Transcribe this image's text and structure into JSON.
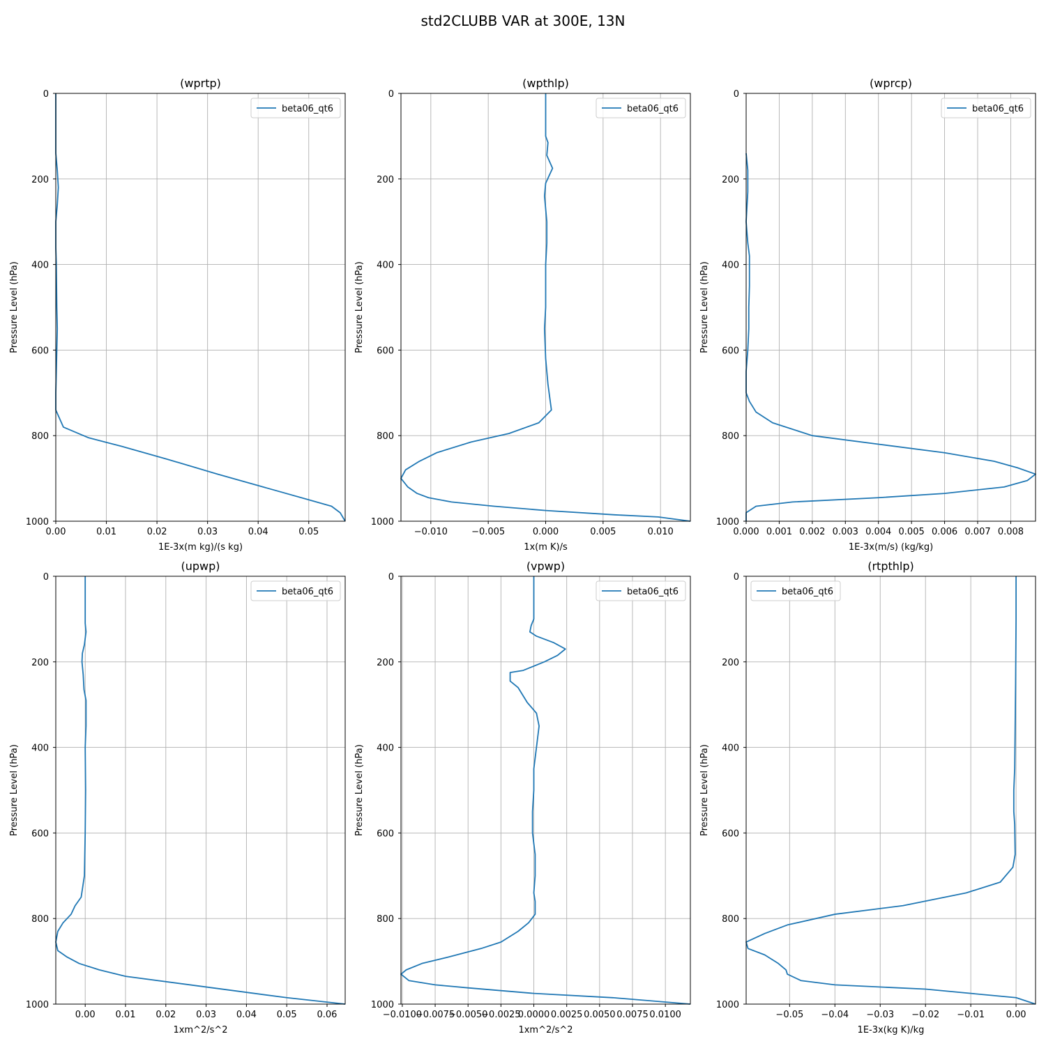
{
  "figure": {
    "title": "std2CLUBB VAR at 300E, 13N"
  },
  "colors": {
    "series": "#1f77b4",
    "grid": "#b0b0b0"
  },
  "chart_data": [
    {
      "type": "line",
      "title": "(wprtp)",
      "xlabel": "1E-3x(m kg)/(s kg)",
      "ylabel": "Pressure Level (hPa)",
      "xlim": [
        0,
        0.0572
      ],
      "ylim": [
        1000,
        0
      ],
      "y_inverted": true,
      "grid": true,
      "legend_position": "upper right",
      "xticks": [
        0,
        0.01,
        0.02,
        0.03,
        0.04,
        0.05
      ],
      "xtick_labels": [
        "0.00",
        "0.01",
        "0.02",
        "0.03",
        "0.04",
        "0.05"
      ],
      "yticks": [
        0,
        200,
        400,
        600,
        800,
        1000
      ],
      "ytick_labels": [
        "0",
        "200",
        "400",
        "600",
        "800",
        "1000"
      ],
      "series": [
        {
          "name": "beta06_qt6",
          "points": [
            [
              0,
              0
            ],
            [
              0,
              140
            ],
            [
              0.0003,
              180
            ],
            [
              0.0005,
              220
            ],
            [
              0.0003,
              260
            ],
            [
              0,
              300
            ],
            [
              0,
              360
            ],
            [
              0.0001,
              400
            ],
            [
              0.0002,
              500
            ],
            [
              0.0003,
              550
            ],
            [
              0.0002,
              600
            ],
            [
              0.0001,
              650
            ],
            [
              0,
              700
            ],
            [
              0,
              740
            ],
            [
              0.0015,
              780
            ],
            [
              0.0065,
              805
            ],
            [
              0.013,
              825
            ],
            [
              0.022,
              855
            ],
            [
              0.032,
              890
            ],
            [
              0.041,
              920
            ],
            [
              0.05,
              950
            ],
            [
              0.0545,
              965
            ],
            [
              0.0562,
              980
            ],
            [
              0.0572,
              1000
            ]
          ]
        }
      ]
    },
    {
      "type": "line",
      "title": "(wpthlp)",
      "xlabel": "1x(m K)/s",
      "ylabel": "Pressure Level (hPa)",
      "xlim": [
        -0.0126,
        0.0126
      ],
      "ylim": [
        1000,
        0
      ],
      "y_inverted": true,
      "grid": true,
      "legend_position": "upper right",
      "xticks": [
        -0.01,
        -0.005,
        0,
        0.005,
        0.01
      ],
      "xtick_labels": [
        "−0.010",
        "−0.005",
        "0.000",
        "0.005",
        "0.010"
      ],
      "yticks": [
        0,
        200,
        400,
        600,
        800,
        1000
      ],
      "ytick_labels": [
        "0",
        "200",
        "400",
        "600",
        "800",
        "1000"
      ],
      "series": [
        {
          "name": "beta06_qt6",
          "points": [
            [
              0,
              0
            ],
            [
              0,
              100
            ],
            [
              0.0002,
              115
            ],
            [
              0.0001,
              145
            ],
            [
              0.0006,
              175
            ],
            [
              0,
              210
            ],
            [
              -0.0001,
              240
            ],
            [
              0.0001,
              300
            ],
            [
              0.0001,
              350
            ],
            [
              0,
              400
            ],
            [
              0,
              500
            ],
            [
              -0.0001,
              550
            ],
            [
              0,
              620
            ],
            [
              0.0002,
              680
            ],
            [
              0.0005,
              740
            ],
            [
              -0.0006,
              770
            ],
            [
              -0.0032,
              795
            ],
            [
              -0.0065,
              815
            ],
            [
              -0.0095,
              840
            ],
            [
              -0.011,
              860
            ],
            [
              -0.0122,
              880
            ],
            [
              -0.0126,
              900
            ],
            [
              -0.012,
              920
            ],
            [
              -0.0112,
              935
            ],
            [
              -0.0102,
              945
            ],
            [
              -0.0082,
              955
            ],
            [
              -0.0045,
              965
            ],
            [
              0,
              975
            ],
            [
              0.006,
              985
            ],
            [
              0.0098,
              990
            ],
            [
              0.0126,
              1000
            ]
          ]
        }
      ]
    },
    {
      "type": "line",
      "title": "(wprcp)",
      "xlabel": "1E-3x(m/s) (kg/kg)",
      "ylabel": "Pressure Level (hPa)",
      "xlim": [
        0,
        0.00875
      ],
      "ylim": [
        1000,
        0
      ],
      "y_inverted": true,
      "grid": true,
      "legend_position": "upper right",
      "xticks": [
        0,
        0.001,
        0.002,
        0.003,
        0.004,
        0.005,
        0.006,
        0.007,
        0.008
      ],
      "xtick_labels": [
        "0.000",
        "0.001",
        "0.002",
        "0.003",
        "0.004",
        "0.005",
        "0.006",
        "0.007",
        "0.008"
      ],
      "yticks": [
        0,
        200,
        400,
        600,
        800,
        1000
      ],
      "ytick_labels": [
        "0",
        "200",
        "400",
        "600",
        "800",
        "1000"
      ],
      "series": [
        {
          "name": "beta06_qt6",
          "points": [
            [
              0,
              140
            ],
            [
              5e-05,
              180
            ],
            [
              5e-05,
              230
            ],
            [
              0,
              300
            ],
            [
              5e-05,
              350
            ],
            [
              0.0001,
              380
            ],
            [
              0.0001,
              450
            ],
            [
              8e-05,
              500
            ],
            [
              8e-05,
              550
            ],
            [
              5e-05,
              600
            ],
            [
              0,
              650
            ],
            [
              0,
              700
            ],
            [
              0.0001,
              720
            ],
            [
              0.0003,
              745
            ],
            [
              0.0008,
              770
            ],
            [
              0.002,
              800
            ],
            [
              0.004,
              820
            ],
            [
              0.006,
              840
            ],
            [
              0.0075,
              860
            ],
            [
              0.0082,
              875
            ],
            [
              0.00875,
              890
            ],
            [
              0.0085,
              905
            ],
            [
              0.0078,
              920
            ],
            [
              0.006,
              935
            ],
            [
              0.004,
              945
            ],
            [
              0.0014,
              955
            ],
            [
              0.0003,
              965
            ],
            [
              0,
              980
            ],
            [
              0,
              1000
            ]
          ]
        }
      ]
    },
    {
      "type": "line",
      "title": "(upwp)",
      "xlabel": "1xm^2/s^2",
      "ylabel": "Pressure Level (hPa)",
      "xlim": [
        -0.0073,
        0.0645
      ],
      "ylim": [
        1000,
        0
      ],
      "y_inverted": true,
      "grid": true,
      "legend_position": "upper right",
      "xticks": [
        0,
        0.01,
        0.02,
        0.03,
        0.04,
        0.05,
        0.06
      ],
      "xtick_labels": [
        "0.00",
        "0.01",
        "0.02",
        "0.03",
        "0.04",
        "0.05",
        "0.06"
      ],
      "yticks": [
        0,
        200,
        400,
        600,
        800,
        1000
      ],
      "ytick_labels": [
        "0",
        "200",
        "400",
        "600",
        "800",
        "1000"
      ],
      "series": [
        {
          "name": "beta06_qt6",
          "points": [
            [
              0,
              0
            ],
            [
              0,
              110
            ],
            [
              0.0002,
              130
            ],
            [
              -0.0002,
              160
            ],
            [
              -0.0007,
              180
            ],
            [
              -0.0008,
              200
            ],
            [
              -0.0005,
              230
            ],
            [
              -0.0003,
              265
            ],
            [
              0.0002,
              290
            ],
            [
              0.0002,
              350
            ],
            [
              0,
              400
            ],
            [
              0.0001,
              500
            ],
            [
              0,
              600
            ],
            [
              -0.0002,
              700
            ],
            [
              -0.001,
              750
            ],
            [
              -0.0025,
              770
            ],
            [
              -0.0035,
              790
            ],
            [
              -0.0055,
              810
            ],
            [
              -0.0068,
              830
            ],
            [
              -0.0073,
              855
            ],
            [
              -0.0068,
              875
            ],
            [
              -0.0045,
              890
            ],
            [
              -0.0015,
              905
            ],
            [
              0.0035,
              920
            ],
            [
              0.01,
              935
            ],
            [
              0.03,
              960
            ],
            [
              0.05,
              985
            ],
            [
              0.0645,
              1000
            ]
          ]
        }
      ]
    },
    {
      "type": "line",
      "title": "(vpwp)",
      "xlabel": "1xm^2/s^2",
      "ylabel": "Pressure Level (hPa)",
      "xlim": [
        -0.0101,
        0.0119
      ],
      "ylim": [
        1000,
        0
      ],
      "y_inverted": true,
      "grid": true,
      "legend_position": "upper right",
      "xticks": [
        -0.01,
        -0.0075,
        -0.005,
        -0.0025,
        0,
        0.0025,
        0.005,
        0.0075,
        0.01
      ],
      "xtick_labels": [
        "−0.0100",
        "−0.0075",
        "−0.0050",
        "−0.0025",
        "0.0000",
        "0.0025",
        "0.0050",
        "0.0075",
        "0.0100"
      ],
      "yticks": [
        0,
        200,
        400,
        600,
        800,
        1000
      ],
      "ytick_labels": [
        "0",
        "200",
        "400",
        "600",
        "800",
        "1000"
      ],
      "series": [
        {
          "name": "beta06_qt6",
          "points": [
            [
              0,
              0
            ],
            [
              0,
              100
            ],
            [
              -0.0002,
              115
            ],
            [
              -0.0003,
              130
            ],
            [
              0.0002,
              140
            ],
            [
              0.0015,
              155
            ],
            [
              0.0024,
              170
            ],
            [
              0.0018,
              185
            ],
            [
              0.0008,
              200
            ],
            [
              -0.0008,
              220
            ],
            [
              -0.0018,
              225
            ],
            [
              -0.0018,
              245
            ],
            [
              -0.0012,
              260
            ],
            [
              -0.0005,
              295
            ],
            [
              0.0002,
              320
            ],
            [
              0.0004,
              350
            ],
            [
              0.0002,
              400
            ],
            [
              0,
              450
            ],
            [
              0,
              500
            ],
            [
              -0.0001,
              550
            ],
            [
              -0.0001,
              600
            ],
            [
              0.0001,
              650
            ],
            [
              0.0001,
              700
            ],
            [
              0,
              740
            ],
            [
              0.0001,
              760
            ],
            [
              0.0001,
              790
            ],
            [
              -0.0004,
              810
            ],
            [
              -0.0012,
              830
            ],
            [
              -0.0025,
              855
            ],
            [
              -0.004,
              870
            ],
            [
              -0.0065,
              890
            ],
            [
              -0.0085,
              905
            ],
            [
              -0.0097,
              920
            ],
            [
              -0.0101,
              930
            ],
            [
              -0.0095,
              945
            ],
            [
              -0.0075,
              955
            ],
            [
              -0.005,
              962
            ],
            [
              0,
              975
            ],
            [
              0.006,
              985
            ],
            [
              0.0119,
              1000
            ]
          ]
        }
      ]
    },
    {
      "type": "line",
      "title": "(rtpthlp)",
      "xlabel": "1E-3x(kg K)/kg",
      "ylabel": "Pressure Level (hPa)",
      "xlim": [
        -0.0596,
        0.0043
      ],
      "ylim": [
        1000,
        0
      ],
      "y_inverted": true,
      "grid": true,
      "legend_position": "upper left",
      "xticks": [
        -0.05,
        -0.04,
        -0.03,
        -0.02,
        -0.01,
        0
      ],
      "xtick_labels": [
        "−0.05",
        "−0.04",
        "−0.03",
        "−0.02",
        "−0.01",
        "0.00"
      ],
      "yticks": [
        0,
        200,
        400,
        600,
        800,
        1000
      ],
      "ytick_labels": [
        "0",
        "200",
        "400",
        "600",
        "800",
        "1000"
      ],
      "series": [
        {
          "name": "beta06_qt6",
          "points": [
            [
              0,
              0
            ],
            [
              0,
              100
            ],
            [
              -0.0001,
              250
            ],
            [
              -0.0002,
              350
            ],
            [
              -0.0003,
              450
            ],
            [
              -0.0005,
              500
            ],
            [
              -0.0005,
              550
            ],
            [
              -0.0003,
              580
            ],
            [
              -0.0002,
              650
            ],
            [
              -0.0007,
              680
            ],
            [
              -0.0035,
              715
            ],
            [
              -0.011,
              740
            ],
            [
              -0.025,
              770
            ],
            [
              -0.04,
              790
            ],
            [
              -0.0505,
              815
            ],
            [
              -0.0555,
              835
            ],
            [
              -0.0596,
              855
            ],
            [
              -0.0592,
              870
            ],
            [
              -0.0555,
              885
            ],
            [
              -0.0525,
              905
            ],
            [
              -0.0508,
              920
            ],
            [
              -0.0505,
              930
            ],
            [
              -0.0475,
              945
            ],
            [
              -0.04,
              955
            ],
            [
              -0.02,
              965
            ],
            [
              -0.01,
              975
            ],
            [
              0,
              985
            ],
            [
              0.0043,
              1000
            ]
          ]
        }
      ]
    }
  ]
}
